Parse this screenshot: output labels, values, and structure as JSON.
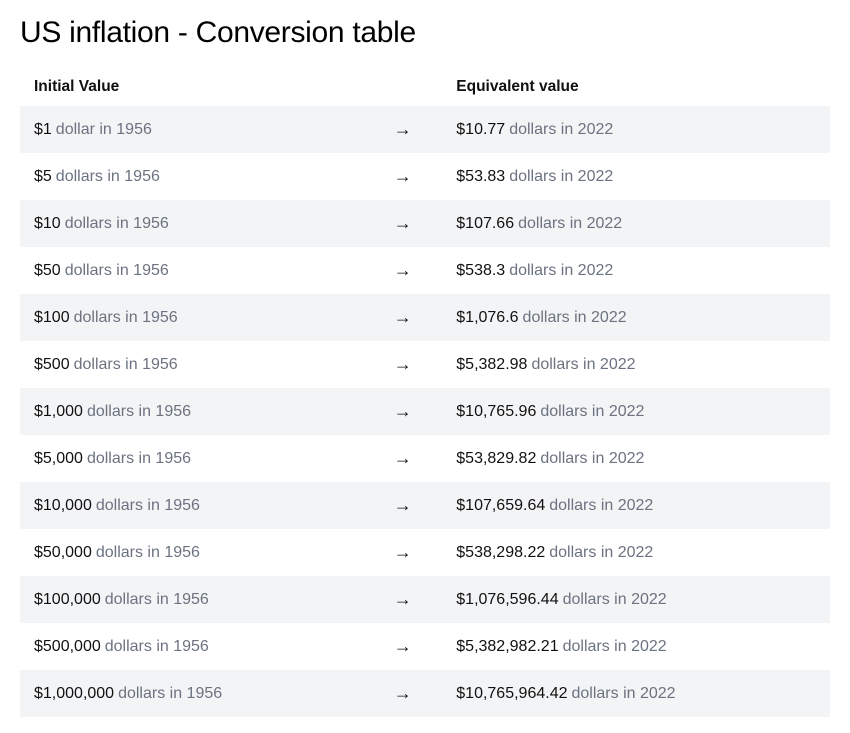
{
  "title": "US inflation - Conversion table",
  "table": {
    "columns": [
      "Initial Value",
      "Equivalent value"
    ],
    "arrow_glyph": "→",
    "from_year": "1956",
    "to_year": "2022",
    "stripe_color": "#f3f4f6",
    "background_color": "#ffffff",
    "amount_color": "#111111",
    "suffix_color": "#6b7280",
    "header_fontweight": 700,
    "row_fontsize": 16,
    "rows": [
      {
        "initial_amount": "$1",
        "initial_suffix": "dollar in 1956",
        "equiv_amount": "$10.77",
        "equiv_suffix": "dollars in 2022"
      },
      {
        "initial_amount": "$5",
        "initial_suffix": "dollars in 1956",
        "equiv_amount": "$53.83",
        "equiv_suffix": "dollars in 2022"
      },
      {
        "initial_amount": "$10",
        "initial_suffix": "dollars in 1956",
        "equiv_amount": "$107.66",
        "equiv_suffix": "dollars in 2022"
      },
      {
        "initial_amount": "$50",
        "initial_suffix": "dollars in 1956",
        "equiv_amount": "$538.3",
        "equiv_suffix": "dollars in 2022"
      },
      {
        "initial_amount": "$100",
        "initial_suffix": "dollars in 1956",
        "equiv_amount": "$1,076.6",
        "equiv_suffix": "dollars in 2022"
      },
      {
        "initial_amount": "$500",
        "initial_suffix": "dollars in 1956",
        "equiv_amount": "$5,382.98",
        "equiv_suffix": "dollars in 2022"
      },
      {
        "initial_amount": "$1,000",
        "initial_suffix": "dollars in 1956",
        "equiv_amount": "$10,765.96",
        "equiv_suffix": "dollars in 2022"
      },
      {
        "initial_amount": "$5,000",
        "initial_suffix": "dollars in 1956",
        "equiv_amount": "$53,829.82",
        "equiv_suffix": "dollars in 2022"
      },
      {
        "initial_amount": "$10,000",
        "initial_suffix": "dollars in 1956",
        "equiv_amount": "$107,659.64",
        "equiv_suffix": "dollars in 2022"
      },
      {
        "initial_amount": "$50,000",
        "initial_suffix": "dollars in 1956",
        "equiv_amount": "$538,298.22",
        "equiv_suffix": "dollars in 2022"
      },
      {
        "initial_amount": "$100,000",
        "initial_suffix": "dollars in 1956",
        "equiv_amount": "$1,076,596.44",
        "equiv_suffix": "dollars in 2022"
      },
      {
        "initial_amount": "$500,000",
        "initial_suffix": "dollars in 1956",
        "equiv_amount": "$5,382,982.21",
        "equiv_suffix": "dollars in 2022"
      },
      {
        "initial_amount": "$1,000,000",
        "initial_suffix": "dollars in 1956",
        "equiv_amount": "$10,765,964.42",
        "equiv_suffix": "dollars in 2022"
      }
    ]
  }
}
